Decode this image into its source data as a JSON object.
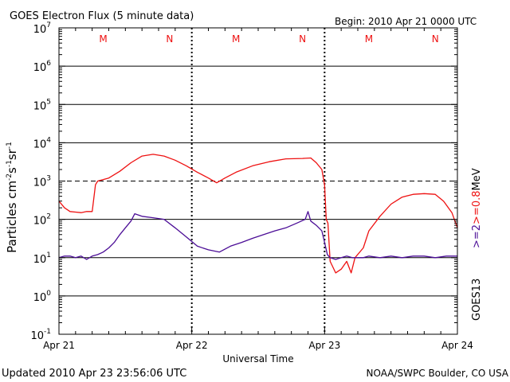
{
  "chart_data": {
    "type": "line",
    "title": "GOES Electron Flux (5 minute data)",
    "begin_label": "Begin: 2010 Apr 21 0000 UTC",
    "ylabel_base": "Particles cm",
    "ylabel_sup1": "-2",
    "ylabel_mid1": "s",
    "ylabel_sup2": "-1",
    "ylabel_mid2": "sr",
    "ylabel_sup3": "-1",
    "xlabel": "Universal Time",
    "yscale": "log",
    "ylim": [
      0.1,
      10000000
    ],
    "xlim": [
      0,
      72
    ],
    "x_unit": "hours since 2010 Apr 21 0000 UTC",
    "y_ticks": [
      {
        "value": 10000000,
        "base": "10",
        "exp": "7"
      },
      {
        "value": 1000000,
        "base": "10",
        "exp": "6"
      },
      {
        "value": 100000,
        "base": "10",
        "exp": "5"
      },
      {
        "value": 10000,
        "base": "10",
        "exp": "4"
      },
      {
        "value": 1000,
        "base": "10",
        "exp": "3"
      },
      {
        "value": 100,
        "base": "10",
        "exp": "2"
      },
      {
        "value": 10,
        "base": "10",
        "exp": "1"
      },
      {
        "value": 1,
        "base": "10",
        "exp": "0"
      },
      {
        "value": 0.1,
        "base": "10",
        "exp": "-1"
      }
    ],
    "x_ticks": [
      {
        "value": 0,
        "label": "Apr 21"
      },
      {
        "value": 24,
        "label": "Apr 22"
      },
      {
        "value": 48,
        "label": "Apr 23"
      },
      {
        "value": 72,
        "label": "Apr 24"
      }
    ],
    "threshold": {
      "value": 1000,
      "style": "dashed"
    },
    "day_markers": [
      {
        "x": 8,
        "label": "M"
      },
      {
        "x": 20,
        "label": "N"
      },
      {
        "x": 32,
        "label": "M"
      },
      {
        "x": 44,
        "label": "N"
      },
      {
        "x": 56,
        "label": "M"
      },
      {
        "x": 68,
        "label": "N"
      }
    ],
    "legend": {
      "satellite": "GOES13",
      "series_labels": [
        ">=2",
        ">=0.8",
        "MeV"
      ],
      "placement": "right"
    },
    "series": [
      {
        "name": ">=2",
        "color": "#ee1111",
        "points": [
          [
            0,
            300
          ],
          [
            1,
            200
          ],
          [
            2,
            160
          ],
          [
            3,
            155
          ],
          [
            4,
            150
          ],
          [
            5,
            160
          ],
          [
            6,
            160
          ],
          [
            6.6,
            800
          ],
          [
            7,
            1000
          ],
          [
            9,
            1200
          ],
          [
            11,
            1800
          ],
          [
            13,
            3000
          ],
          [
            15,
            4500
          ],
          [
            17,
            5000
          ],
          [
            19,
            4500
          ],
          [
            21,
            3500
          ],
          [
            23,
            2500
          ],
          [
            25,
            1700
          ],
          [
            27,
            1200
          ],
          [
            28.5,
            900
          ],
          [
            30,
            1200
          ],
          [
            32,
            1700
          ],
          [
            35,
            2500
          ],
          [
            38,
            3200
          ],
          [
            41,
            3800
          ],
          [
            44,
            3900
          ],
          [
            45.5,
            4000
          ],
          [
            46.5,
            3000
          ],
          [
            47.5,
            2000
          ],
          [
            48,
            800
          ],
          [
            48.3,
            100
          ],
          [
            48.6,
            80
          ],
          [
            49,
            8
          ],
          [
            50,
            4
          ],
          [
            51,
            5
          ],
          [
            52,
            8
          ],
          [
            52.8,
            4
          ],
          [
            53.5,
            10
          ],
          [
            55,
            18
          ],
          [
            56,
            50
          ],
          [
            58,
            120
          ],
          [
            60,
            250
          ],
          [
            62,
            380
          ],
          [
            64,
            450
          ],
          [
            66,
            470
          ],
          [
            68,
            450
          ],
          [
            69.5,
            300
          ],
          [
            71,
            150
          ],
          [
            72,
            60
          ]
        ]
      },
      {
        "name": ">=0.8",
        "color": "#4b0d96",
        "points": [
          [
            0,
            10
          ],
          [
            1,
            11
          ],
          [
            2,
            11
          ],
          [
            3,
            10
          ],
          [
            4,
            11
          ],
          [
            5,
            9
          ],
          [
            6,
            11
          ],
          [
            7,
            12
          ],
          [
            8,
            14
          ],
          [
            9,
            18
          ],
          [
            10,
            25
          ],
          [
            11,
            40
          ],
          [
            12,
            60
          ],
          [
            13,
            90
          ],
          [
            13.7,
            140
          ],
          [
            15,
            120
          ],
          [
            17,
            110
          ],
          [
            19,
            100
          ],
          [
            21,
            60
          ],
          [
            23,
            35
          ],
          [
            25,
            20
          ],
          [
            27,
            16
          ],
          [
            29,
            14
          ],
          [
            31,
            20
          ],
          [
            33,
            25
          ],
          [
            35,
            32
          ],
          [
            37,
            40
          ],
          [
            39,
            50
          ],
          [
            41,
            60
          ],
          [
            43,
            80
          ],
          [
            44.5,
            100
          ],
          [
            45,
            160
          ],
          [
            45.5,
            90
          ],
          [
            46.5,
            70
          ],
          [
            47.5,
            50
          ],
          [
            48,
            25
          ],
          [
            48.5,
            12
          ],
          [
            49,
            10
          ],
          [
            50,
            9
          ],
          [
            51,
            10
          ],
          [
            52,
            11
          ],
          [
            53,
            10
          ],
          [
            54,
            10
          ],
          [
            55,
            10
          ],
          [
            56,
            11
          ],
          [
            58,
            10
          ],
          [
            60,
            11
          ],
          [
            62,
            10
          ],
          [
            64,
            11
          ],
          [
            66,
            11
          ],
          [
            68,
            10
          ],
          [
            70,
            11
          ],
          [
            72,
            11
          ]
        ]
      }
    ],
    "grid": true
  },
  "footer": {
    "updated": "Updated 2010 Apr 23 23:56:06 UTC",
    "source": "NOAA/SWPC Boulder, CO USA"
  }
}
